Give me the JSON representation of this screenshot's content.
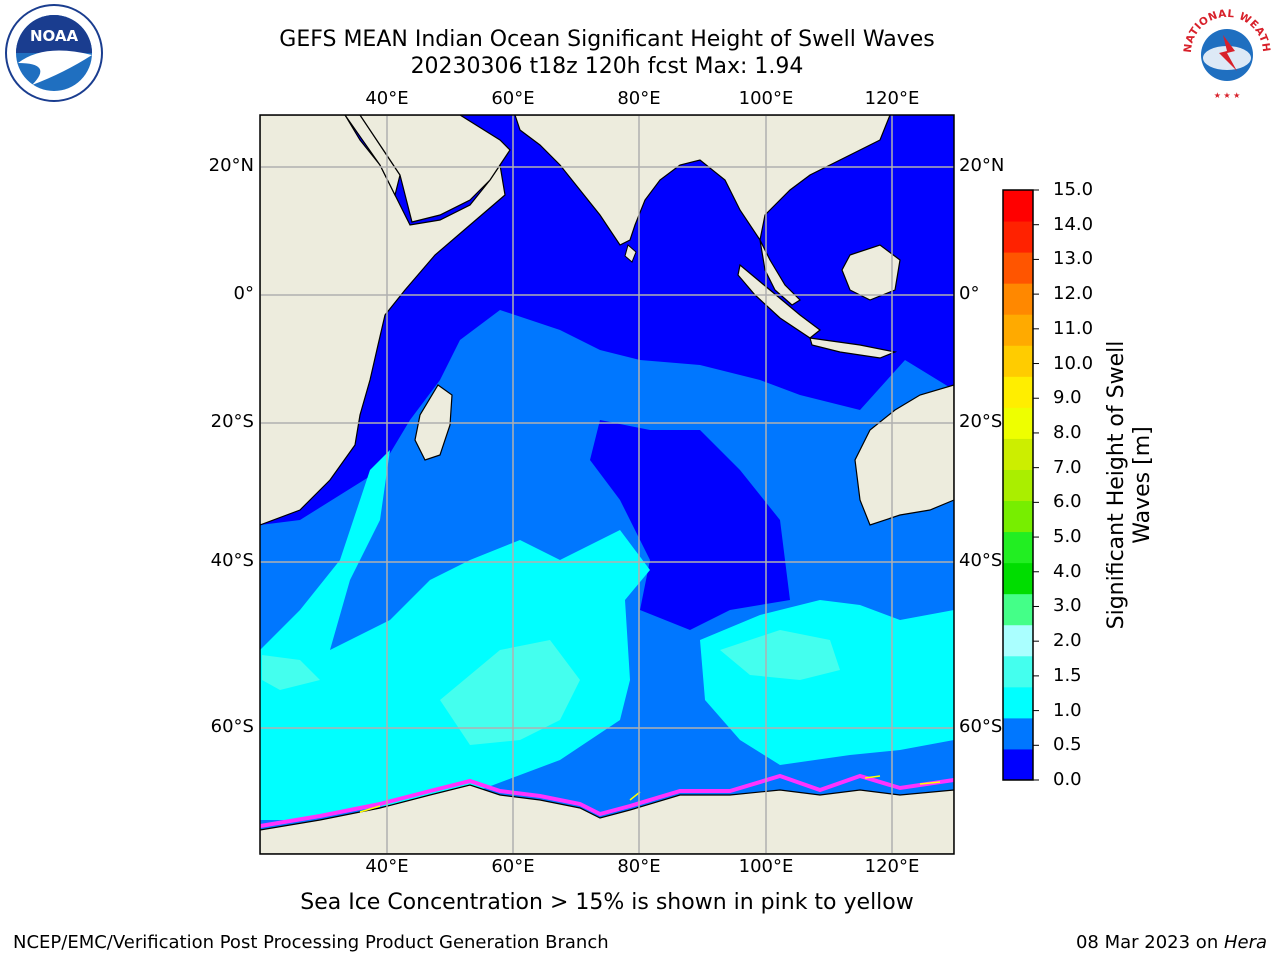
{
  "title": {
    "line1": "GEFS MEAN Indian Ocean Significant Height of Swell Waves",
    "line2": "20230306 t18z 120h fcst   Max: 1.94"
  },
  "map": {
    "lon_ticks": [
      "40°E",
      "60°E",
      "80°E",
      "100°E",
      "120°E"
    ],
    "lat_ticks": [
      "20°N",
      "0°",
      "20°S",
      "40°S",
      "60°S"
    ],
    "colors": {
      "land": "#edecdd",
      "band_0_0_5": "#0000ff",
      "band_0_5_1_0": "#0077ff",
      "band_1_0_1_5": "#00ffff",
      "band_1_5_2_0": "#44ffee",
      "ice_pink": "#ff33ff",
      "ice_yellow": "#ffff00",
      "grid": "#b0b0b0"
    }
  },
  "colorbar": {
    "title_line1": "Significant Height of Swell",
    "title_line2": "Waves [m]",
    "ticks": [
      "15.0",
      "14.0",
      "13.0",
      "12.0",
      "11.0",
      "10.0",
      "9.0",
      "8.0",
      "7.0",
      "6.0",
      "5.0",
      "4.0",
      "3.0",
      "2.0",
      "1.5",
      "1.0",
      "0.5",
      "0.0"
    ],
    "colors": [
      "#0000ff",
      "#0077ff",
      "#00ffff",
      "#44ffee",
      "#aaffff",
      "#44ff88",
      "#00dd00",
      "#22ee22",
      "#77ee00",
      "#aaee00",
      "#ccee00",
      "#eeff00",
      "#ffee00",
      "#ffcc00",
      "#ffaa00",
      "#ff8800",
      "#ff5500",
      "#ff2200",
      "#ff0000"
    ]
  },
  "ice_note": "Sea Ice Concentration > 15% is shown in pink to yellow",
  "footer": {
    "left": "NCEP/EMC/Verification Post Processing Product Generation Branch",
    "right_date": "08 Mar 2023 on ",
    "right_host": "Hera"
  },
  "logos": {
    "noaa": "NOAA",
    "nws": "NATIONAL WEATHER SERVICE"
  }
}
